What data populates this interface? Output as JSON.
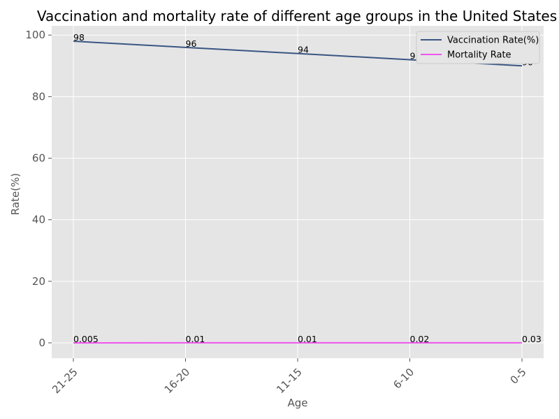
{
  "chart_data": {
    "type": "line",
    "title": "Vaccination and mortality rate of different age groups in the United States",
    "xlabel": "Age",
    "ylabel": "Rate(%)",
    "categories": [
      "21-25",
      "16-20",
      "11-15",
      "6-10",
      "0-5"
    ],
    "ylim": [
      -5,
      103
    ],
    "yticks": [
      0,
      20,
      40,
      60,
      80,
      100
    ],
    "grid": true,
    "legend_position": "top-right",
    "series": [
      {
        "name": "Vaccination Rate(%)",
        "values": [
          98,
          96,
          94,
          92,
          90
        ],
        "labels": [
          "98",
          "96",
          "94",
          "92",
          "90"
        ],
        "color": "#3a5683"
      },
      {
        "name": "Mortality Rate",
        "values": [
          0.005,
          0.01,
          0.01,
          0.02,
          0.03
        ],
        "labels": [
          "0.005",
          "0.01",
          "0.01",
          "0.02",
          "0.03"
        ],
        "color": "#ee55ee"
      }
    ]
  },
  "colors": {
    "plot_background": "#e5e5e5",
    "grid": "#ffffff",
    "legend_background": "#e5e5e5"
  }
}
